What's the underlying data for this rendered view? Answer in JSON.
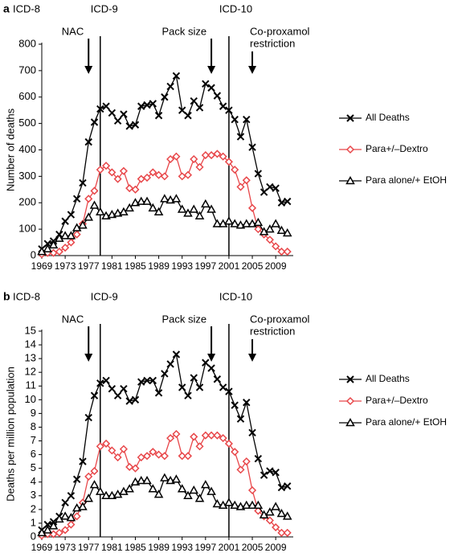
{
  "chart_data": [
    {
      "type": "line",
      "panel_label": "a",
      "ylabel": "Number of deaths",
      "xlim": [
        1969,
        2012
      ],
      "xticks": [
        1969,
        1973,
        1977,
        1981,
        1985,
        1989,
        1993,
        1997,
        2001,
        2005,
        2009
      ],
      "ylim": [
        0,
        800
      ],
      "yticks": [
        0,
        100,
        200,
        300,
        400,
        500,
        600,
        700,
        800
      ],
      "period_labels": [
        {
          "text": "ICD-8"
        },
        {
          "text": "ICD-9",
          "x": 1979
        },
        {
          "text": "ICD-10",
          "x": 2001
        }
      ],
      "events": [
        {
          "lines": [
            "NAC"
          ],
          "x": 1977
        },
        {
          "lines": [
            "Pack size"
          ],
          "x": 1998
        },
        {
          "lines": [
            "Co-proxamol",
            "restriction"
          ],
          "x": 2005
        }
      ],
      "x": [
        1969,
        1970,
        1971,
        1972,
        1973,
        1974,
        1975,
        1976,
        1977,
        1978,
        1979,
        1980,
        1981,
        1982,
        1983,
        1984,
        1985,
        1986,
        1987,
        1988,
        1989,
        1990,
        1991,
        1992,
        1993,
        1994,
        1995,
        1996,
        1997,
        1998,
        1999,
        2000,
        2001,
        2002,
        2003,
        2004,
        2005,
        2006,
        2007,
        2008,
        2009,
        2010,
        2011
      ],
      "series": [
        {
          "name": "All Deaths",
          "color": "#000000",
          "marker": "cross",
          "values": [
            25,
            45,
            55,
            80,
            130,
            155,
            215,
            275,
            430,
            505,
            555,
            565,
            540,
            510,
            535,
            490,
            495,
            565,
            570,
            575,
            530,
            600,
            640,
            680,
            550,
            530,
            585,
            560,
            650,
            635,
            605,
            565,
            550,
            515,
            450,
            515,
            410,
            310,
            240,
            260,
            255,
            200,
            205
          ]
        },
        {
          "name": "Para+/–Dextro",
          "color": "#e8474a",
          "marker": "diamond",
          "values": [
            5,
            10,
            10,
            15,
            30,
            50,
            80,
            120,
            215,
            245,
            325,
            340,
            315,
            290,
            320,
            255,
            250,
            290,
            295,
            315,
            305,
            300,
            365,
            375,
            300,
            305,
            365,
            335,
            380,
            380,
            385,
            375,
            355,
            325,
            260,
            285,
            180,
            100,
            80,
            60,
            35,
            15,
            15
          ]
        },
        {
          "name": "Para alone/+ EtOH",
          "color": "#000000",
          "marker": "triangle",
          "values": [
            15,
            25,
            40,
            65,
            75,
            75,
            105,
            115,
            145,
            190,
            165,
            150,
            155,
            160,
            165,
            180,
            200,
            205,
            205,
            180,
            165,
            215,
            210,
            215,
            175,
            160,
            175,
            150,
            195,
            175,
            120,
            120,
            130,
            120,
            115,
            120,
            120,
            125,
            90,
            100,
            120,
            95,
            85
          ]
        }
      ]
    },
    {
      "type": "line",
      "panel_label": "b",
      "ylabel": "Deaths per million population",
      "xlim": [
        1969,
        2012
      ],
      "xticks": [
        1969,
        1973,
        1977,
        1981,
        1985,
        1989,
        1993,
        1997,
        2001,
        2005,
        2009
      ],
      "ylim": [
        0,
        15
      ],
      "yticks": [
        0,
        1,
        2,
        3,
        4,
        5,
        6,
        7,
        8,
        9,
        10,
        11,
        12,
        13,
        14,
        15
      ],
      "period_labels": [
        {
          "text": "ICD-8"
        },
        {
          "text": "ICD-9",
          "x": 1979
        },
        {
          "text": "ICD-10",
          "x": 2001
        }
      ],
      "events": [
        {
          "lines": [
            "NAC"
          ],
          "x": 1977
        },
        {
          "lines": [
            "Pack size"
          ],
          "x": 1998
        },
        {
          "lines": [
            "Co-proxamol",
            "restriction"
          ],
          "x": 2005
        }
      ],
      "x": [
        1969,
        1970,
        1971,
        1972,
        1973,
        1974,
        1975,
        1976,
        1977,
        1978,
        1979,
        1980,
        1981,
        1982,
        1983,
        1984,
        1985,
        1986,
        1987,
        1988,
        1989,
        1990,
        1991,
        1992,
        1993,
        1994,
        1995,
        1996,
        1997,
        1998,
        1999,
        2000,
        2001,
        2002,
        2003,
        2004,
        2005,
        2006,
        2007,
        2008,
        2009,
        2010,
        2011
      ],
      "series": [
        {
          "name": "All Deaths",
          "color": "#000000",
          "marker": "cross",
          "values": [
            0.5,
            0.9,
            1.1,
            1.5,
            2.5,
            3.0,
            4.2,
            5.5,
            8.7,
            10.3,
            11.2,
            11.4,
            10.8,
            10.3,
            10.8,
            9.9,
            10.0,
            11.3,
            11.4,
            11.4,
            10.5,
            11.9,
            12.6,
            13.3,
            10.9,
            10.3,
            11.6,
            10.9,
            12.7,
            12.3,
            11.5,
            10.9,
            10.6,
            9.6,
            8.6,
            9.8,
            7.6,
            5.7,
            4.5,
            4.8,
            4.7,
            3.6,
            3.7
          ]
        },
        {
          "name": "Para+/–Dextro",
          "color": "#e8474a",
          "marker": "diamond",
          "values": [
            0.1,
            0.2,
            0.2,
            0.3,
            0.5,
            0.9,
            1.5,
            2.5,
            4.4,
            4.8,
            6.6,
            6.8,
            6.3,
            5.8,
            6.4,
            5.1,
            5.0,
            5.8,
            5.9,
            6.2,
            6.0,
            5.9,
            7.2,
            7.5,
            5.9,
            5.9,
            7.3,
            6.6,
            7.4,
            7.4,
            7.4,
            7.2,
            6.8,
            6.2,
            4.9,
            5.5,
            3.4,
            1.9,
            1.5,
            1.2,
            0.7,
            0.3,
            0.3
          ]
        },
        {
          "name": "Para alone/+ EtOH",
          "color": "#000000",
          "marker": "triangle",
          "values": [
            0.3,
            0.5,
            0.8,
            1.3,
            1.5,
            1.4,
            2.1,
            2.2,
            2.8,
            3.8,
            3.3,
            3.0,
            3.0,
            3.1,
            3.3,
            3.5,
            4.0,
            4.1,
            4.1,
            3.5,
            3.1,
            4.3,
            4.1,
            4.2,
            3.5,
            3.0,
            3.4,
            2.8,
            3.8,
            3.3,
            2.4,
            2.3,
            2.5,
            2.3,
            2.2,
            2.3,
            2.3,
            2.3,
            1.6,
            1.8,
            2.2,
            1.7,
            1.5
          ]
        }
      ]
    }
  ]
}
